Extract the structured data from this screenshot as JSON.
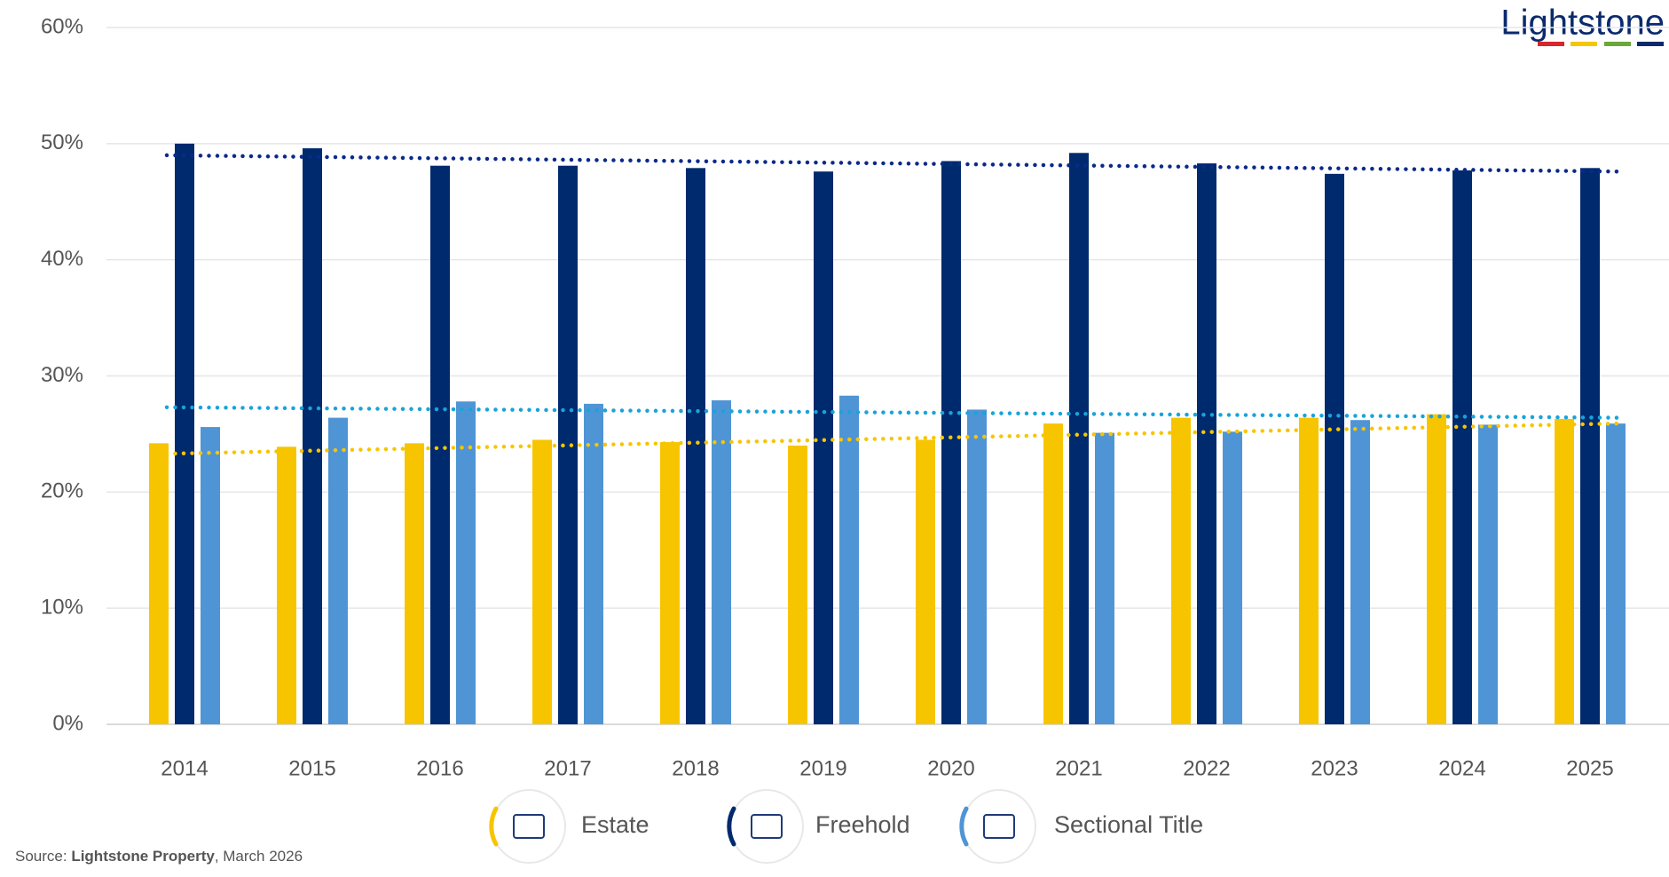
{
  "brand": "Lightstone",
  "source": {
    "prefix": "Source: ",
    "name": "Lightstone Property",
    "suffix": ", March 2026"
  },
  "chart_data": {
    "type": "bar",
    "categories": [
      "2014",
      "2015",
      "2016",
      "2017",
      "2018",
      "2019",
      "2020",
      "2021",
      "2022",
      "2023",
      "2024",
      "2025"
    ],
    "series": [
      {
        "name": "Estate",
        "color": "#f7c500",
        "values": [
          24.2,
          23.9,
          24.2,
          24.5,
          24.3,
          24.0,
          24.5,
          25.9,
          26.4,
          26.4,
          26.7,
          26.3
        ],
        "trendline": [
          23.3,
          25.9
        ]
      },
      {
        "name": "Freehold",
        "color": "#002a6e",
        "values": [
          50.0,
          49.6,
          48.1,
          48.1,
          47.9,
          47.6,
          48.5,
          49.2,
          48.3,
          47.4,
          47.7,
          47.9
        ],
        "trendline": [
          49.0,
          47.6
        ]
      },
      {
        "name": "Sectional Title",
        "color": "#4f95d6",
        "values": [
          25.6,
          26.4,
          27.8,
          27.6,
          27.9,
          28.3,
          27.1,
          25.1,
          25.2,
          26.2,
          25.8,
          25.9
        ],
        "trendline": [
          27.3,
          26.4
        ]
      }
    ],
    "trend_colors": [
      "#f7c500",
      "#0a2a8a",
      "#1aa3d9"
    ],
    "ylim": [
      0,
      60
    ],
    "yticks": [
      {
        "value": 0,
        "label": "0%"
      },
      {
        "value": 10,
        "label": "10%"
      },
      {
        "value": 20,
        "label": "20%"
      },
      {
        "value": 30,
        "label": "30%"
      },
      {
        "value": 40,
        "label": "40%"
      },
      {
        "value": 50,
        "label": "50%"
      },
      {
        "value": 60,
        "label": "60%"
      }
    ],
    "grid": true
  }
}
